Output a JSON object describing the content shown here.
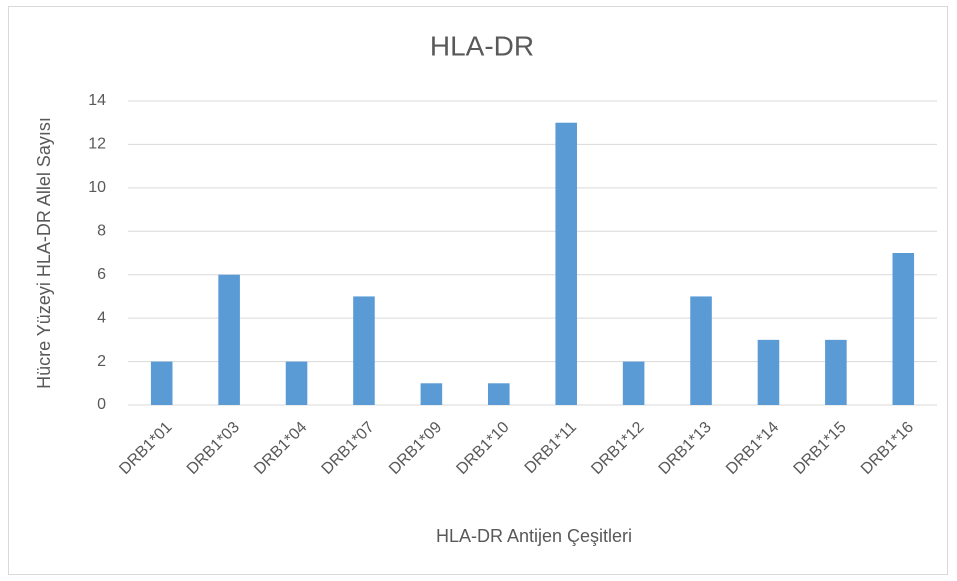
{
  "chart_data": {
    "type": "bar",
    "title": "HLA-DR",
    "x_label": "HLA-DR Antijen Çeşitleri",
    "y_label": "Hücre Yüzeyi HLA-DR Allel Sayısı",
    "categories": [
      "DRB1*01",
      "DRB1*03",
      "DRB1*04",
      "DRB1*07",
      "DRB1*09",
      "DRB1*10",
      "DRB1*11",
      "DRB1*12",
      "DRB1*13",
      "DRB1*14",
      "DRB1*15",
      "DRB1*16"
    ],
    "values": [
      2,
      6,
      2,
      5,
      1,
      1,
      13,
      2,
      5,
      3,
      3,
      7
    ],
    "color": "#5b9bd5",
    "ylim": [
      0,
      14
    ],
    "yticks": [
      0,
      2,
      4,
      6,
      8,
      10,
      12,
      14
    ],
    "grid": true
  }
}
